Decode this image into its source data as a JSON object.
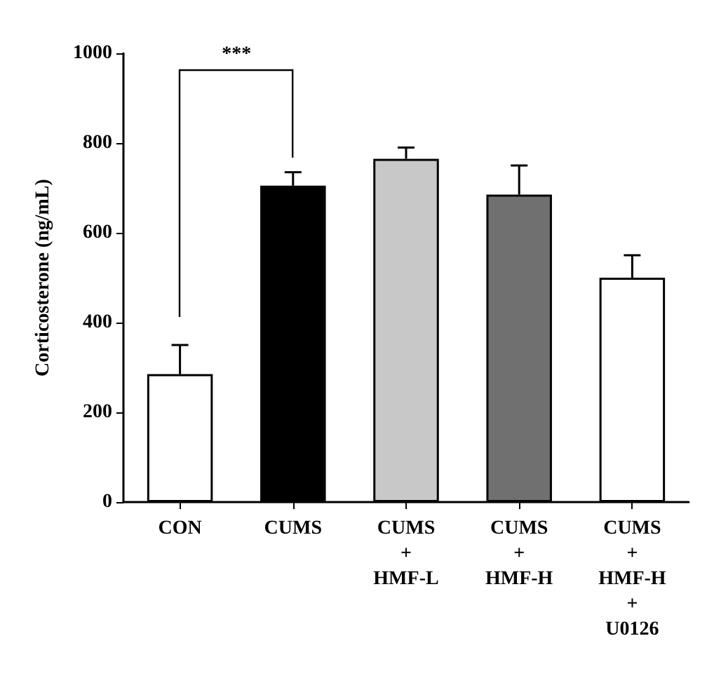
{
  "chart_data": {
    "type": "bar",
    "ylabel": "Corticosterone (ng/mL)",
    "categories": [
      "CON",
      "CUMS",
      "CUMS\n+\nHMF-L",
      "CUMS\n+\nHMF-H",
      "CUMS\n+\nHMF-H\n+\nU0126"
    ],
    "values": [
      285,
      705,
      765,
      685,
      500
    ],
    "colors": [
      "#ffffff",
      "#000000",
      "#c8c8c8",
      "#707070",
      "#ffffff"
    ],
    "errors": [
      [
        285,
        350
      ],
      [
        705,
        735
      ],
      [
        765,
        790
      ],
      [
        685,
        750
      ],
      [
        500,
        550
      ]
    ],
    "ylim": [
      0,
      1000
    ],
    "yticks": [
      0,
      200,
      400,
      600,
      800,
      1000
    ],
    "grid": false,
    "annotations": [
      "***"
    ]
  }
}
